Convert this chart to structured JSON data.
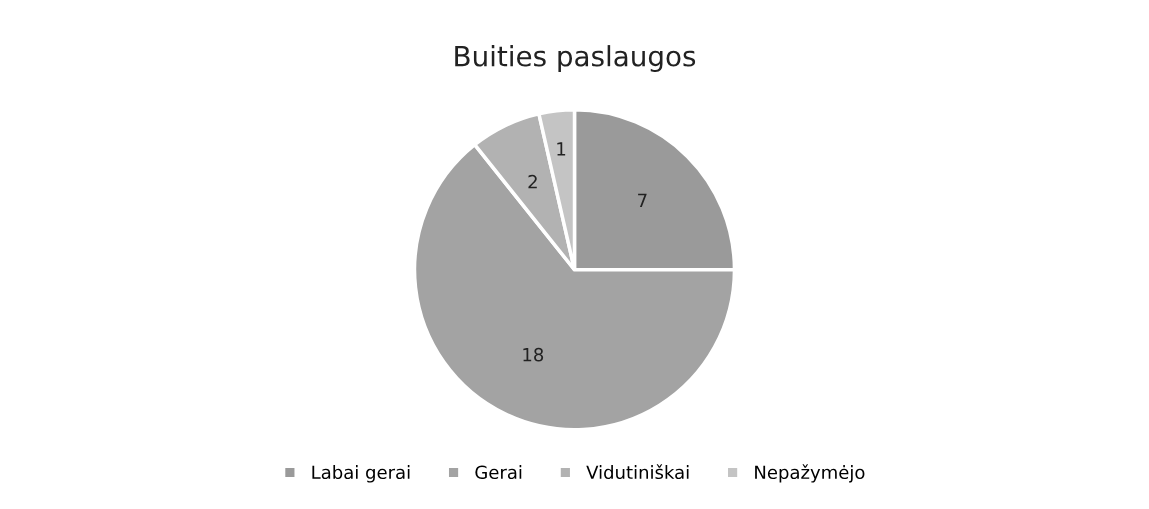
{
  "chart_data": {
    "type": "pie",
    "title": "Buities paslaugos",
    "categories": [
      "Labai gerai",
      "Gerai",
      "Vidutiniškai",
      "Nepažymėjo"
    ],
    "values": [
      7,
      18,
      2,
      1
    ],
    "colors": [
      "#9a9a9a",
      "#a3a3a3",
      "#b2b2b2",
      "#c4c4c4"
    ],
    "data_labels": true,
    "legend": "bottom"
  }
}
